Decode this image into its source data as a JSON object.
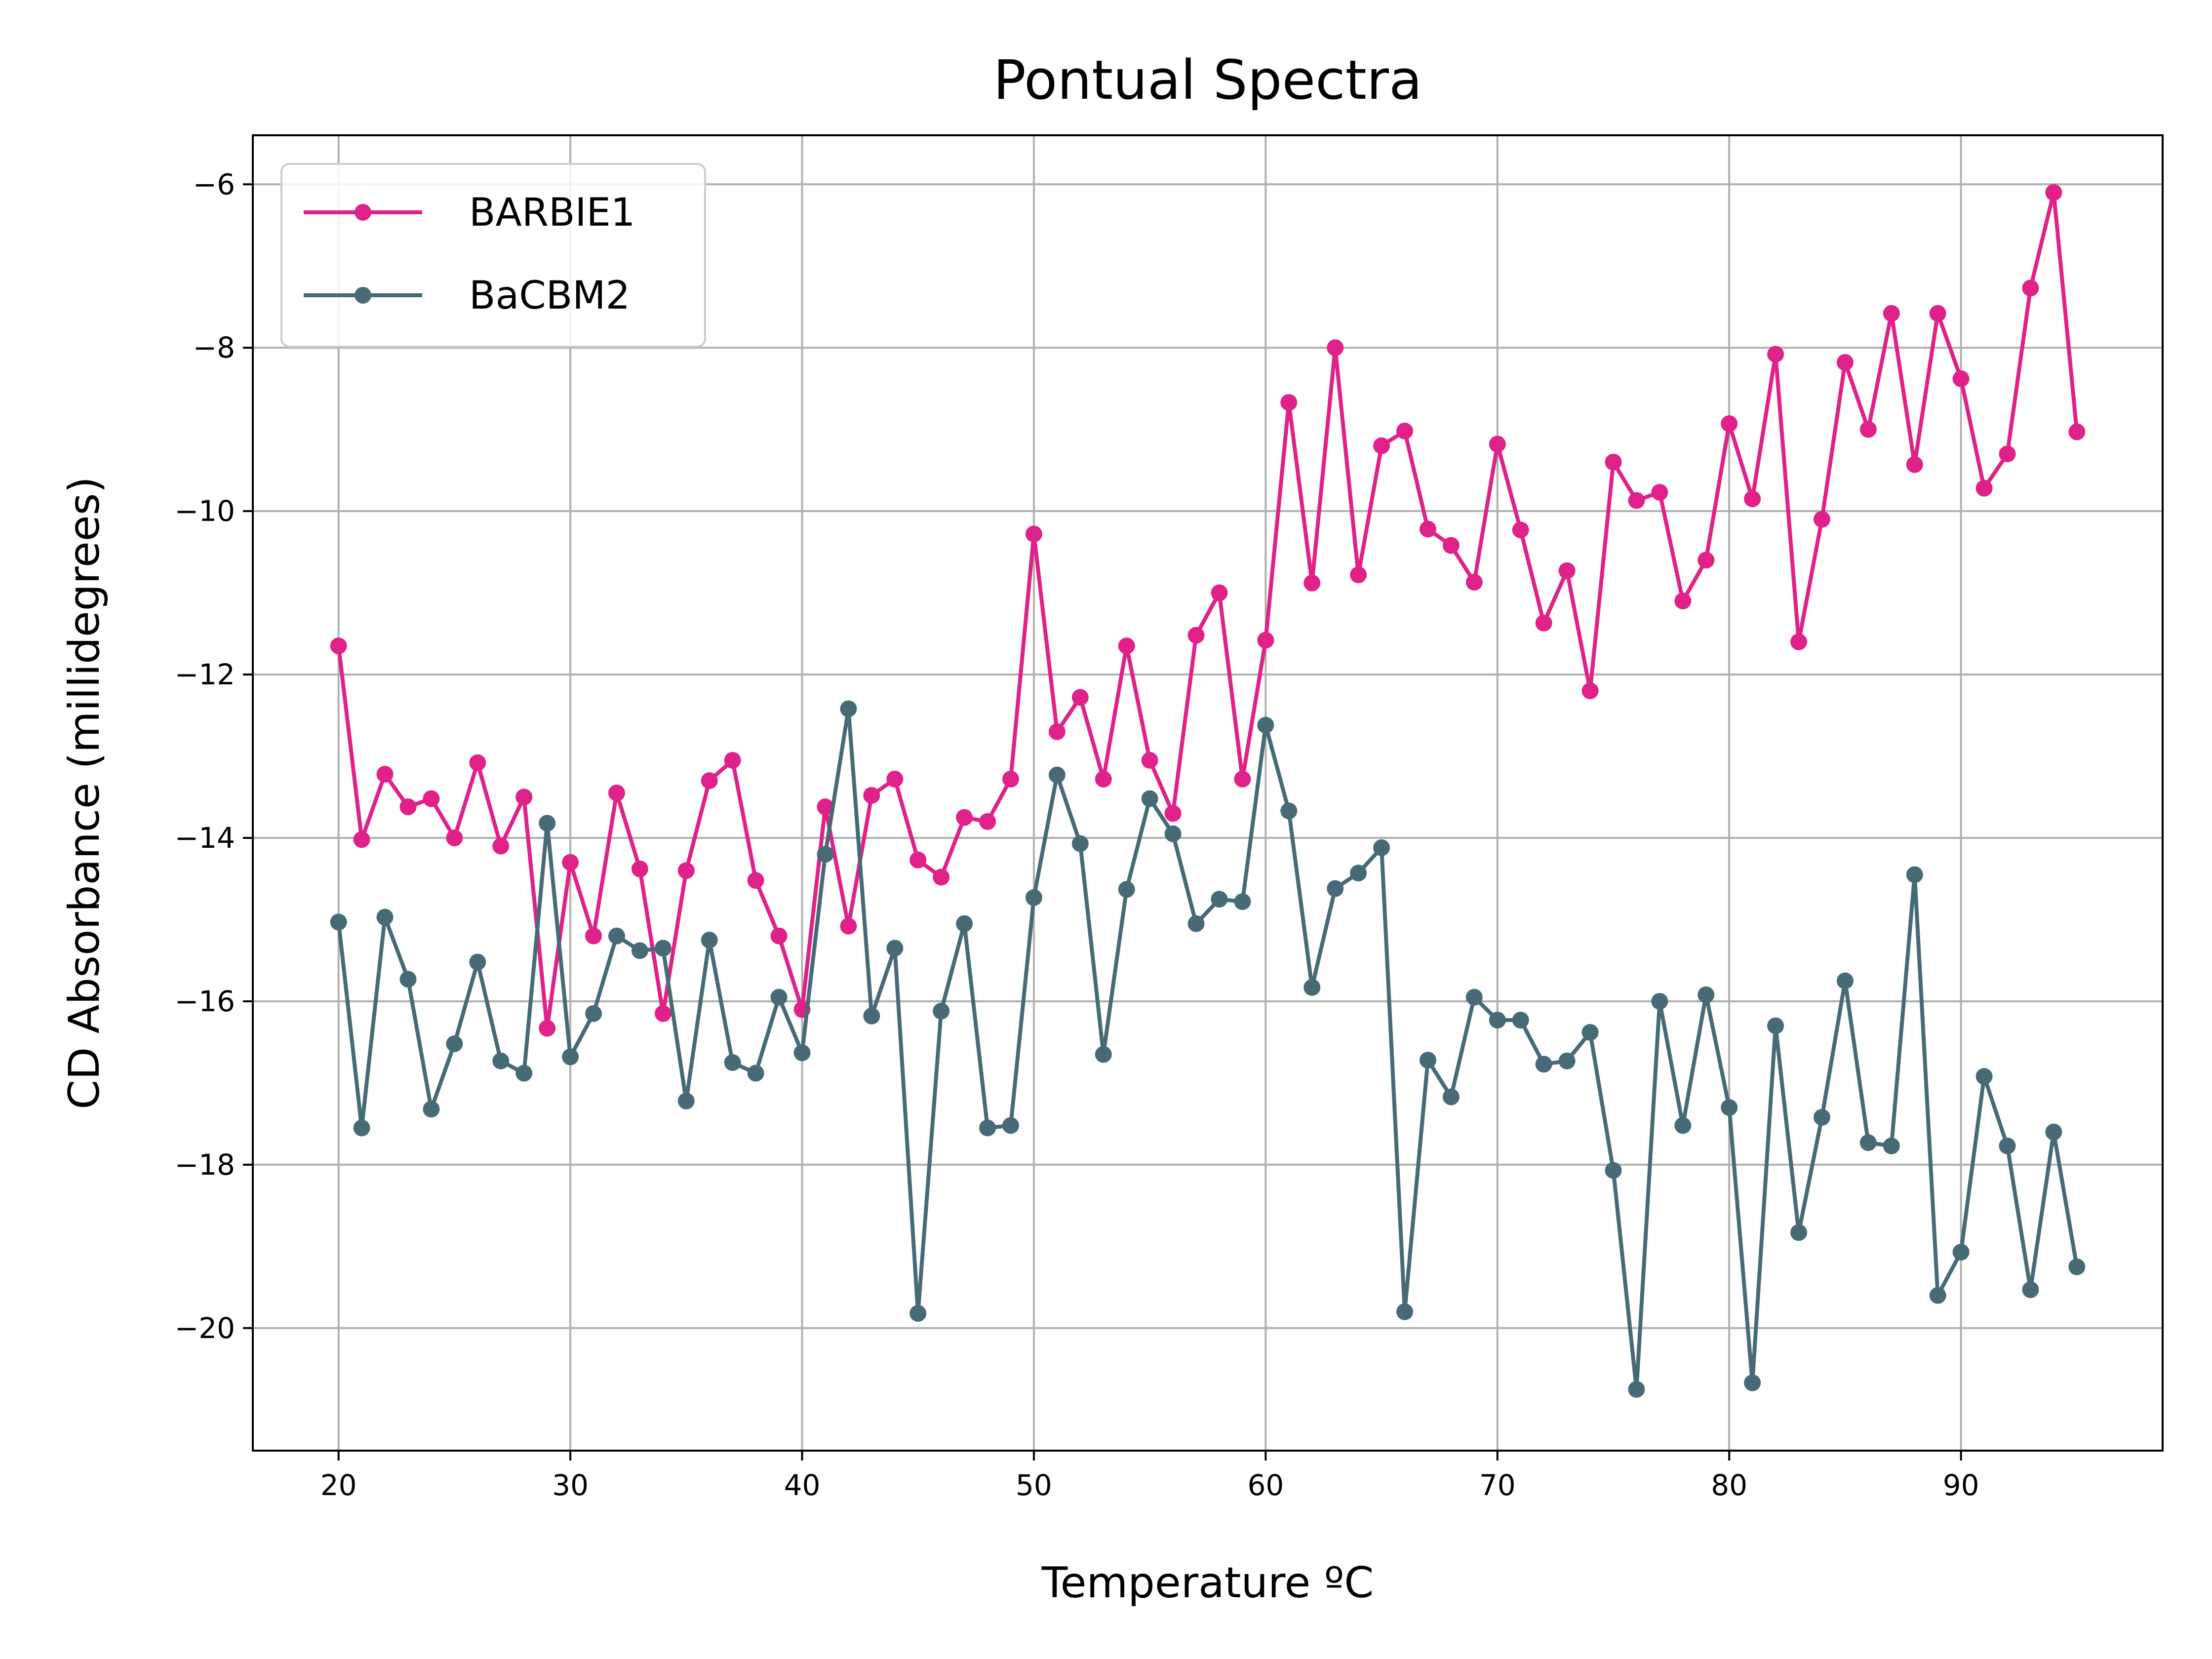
{
  "chart_data": {
    "type": "line",
    "title": "Pontual Spectra",
    "xlabel": "Temperature ºC",
    "ylabel": "CD Absorbance (millidegrees)",
    "xlim": [
      16.3,
      98.7
    ],
    "ylim": [
      -21.5,
      -5.4
    ],
    "xticks": [
      20,
      30,
      40,
      50,
      60,
      70,
      80,
      90
    ],
    "yticks": [
      -20,
      -18,
      -16,
      -14,
      -12,
      -10,
      -8,
      -6
    ],
    "ytick_labels": [
      "−20",
      "−18",
      "−16",
      "−14",
      "−12",
      "−10",
      "−8",
      "−6"
    ],
    "grid": true,
    "legend_position": "upper-left",
    "x": [
      20,
      21,
      22,
      23,
      24,
      25,
      26,
      27,
      28,
      29,
      30,
      31,
      32,
      33,
      34,
      35,
      36,
      37,
      38,
      39,
      40,
      41,
      42,
      43,
      44,
      45,
      46,
      47,
      48,
      49,
      50,
      51,
      52,
      53,
      54,
      55,
      56,
      57,
      58,
      59,
      60,
      61,
      62,
      63,
      64,
      65,
      66,
      67,
      68,
      69,
      70,
      71,
      72,
      73,
      74,
      75,
      76,
      77,
      78,
      79,
      80,
      81,
      82,
      83,
      84,
      85,
      86,
      87,
      88,
      89,
      90,
      91,
      92,
      93,
      94,
      95
    ],
    "series": [
      {
        "name": "BARBIE1",
        "color": "#e0218a",
        "values": [
          -11.65,
          -14.02,
          -13.22,
          -13.62,
          -13.52,
          -14.0,
          -13.08,
          -14.1,
          -13.5,
          -16.33,
          -14.3,
          -15.2,
          -13.45,
          -14.38,
          -16.15,
          -14.4,
          -13.3,
          -13.05,
          -14.52,
          -15.2,
          -16.1,
          -13.62,
          -15.08,
          -13.48,
          -13.28,
          -14.27,
          -14.48,
          -13.75,
          -13.8,
          -13.28,
          -10.28,
          -12.7,
          -12.28,
          -13.28,
          -11.65,
          -13.05,
          -13.7,
          -11.52,
          -11.0,
          -13.28,
          -11.58,
          -8.67,
          -10.88,
          -8.0,
          -10.78,
          -9.2,
          -9.02,
          -10.22,
          -10.42,
          -10.87,
          -9.18,
          -10.23,
          -11.37,
          -10.73,
          -12.2,
          -9.4,
          -9.87,
          -9.77,
          -11.1,
          -10.6,
          -8.93,
          -9.85,
          -8.08,
          -11.6,
          -10.1,
          -8.18,
          -9.0,
          -7.58,
          -9.43,
          -7.58,
          -8.38,
          -9.72,
          -9.3,
          -7.27,
          -6.1,
          -9.03
        ]
      },
      {
        "name": "BaCBM2",
        "color": "#466b77",
        "values": [
          -15.03,
          -17.55,
          -14.97,
          -15.73,
          -17.32,
          -16.52,
          -15.52,
          -16.73,
          -16.88,
          -13.82,
          -16.68,
          -16.15,
          -15.2,
          -15.38,
          -15.35,
          -17.22,
          -15.25,
          -16.75,
          -16.88,
          -15.95,
          -16.63,
          -14.2,
          -12.42,
          -16.18,
          -15.35,
          -19.82,
          -16.12,
          -15.05,
          -17.55,
          -17.52,
          -14.73,
          -13.23,
          -14.07,
          -16.65,
          -14.63,
          -13.52,
          -13.95,
          -15.05,
          -14.75,
          -14.78,
          -12.62,
          -13.67,
          -15.83,
          -14.62,
          -14.43,
          -14.12,
          -19.8,
          -16.72,
          -17.17,
          -15.95,
          -16.23,
          -16.23,
          -16.77,
          -16.73,
          -16.38,
          -18.07,
          -20.75,
          -16.0,
          -17.52,
          -15.92,
          -17.3,
          -20.67,
          -16.3,
          -18.83,
          -17.42,
          -15.75,
          -17.73,
          -17.77,
          -14.45,
          -19.6,
          -19.07,
          -16.92,
          -17.77,
          -19.53,
          -17.6,
          -19.25
        ]
      }
    ]
  }
}
